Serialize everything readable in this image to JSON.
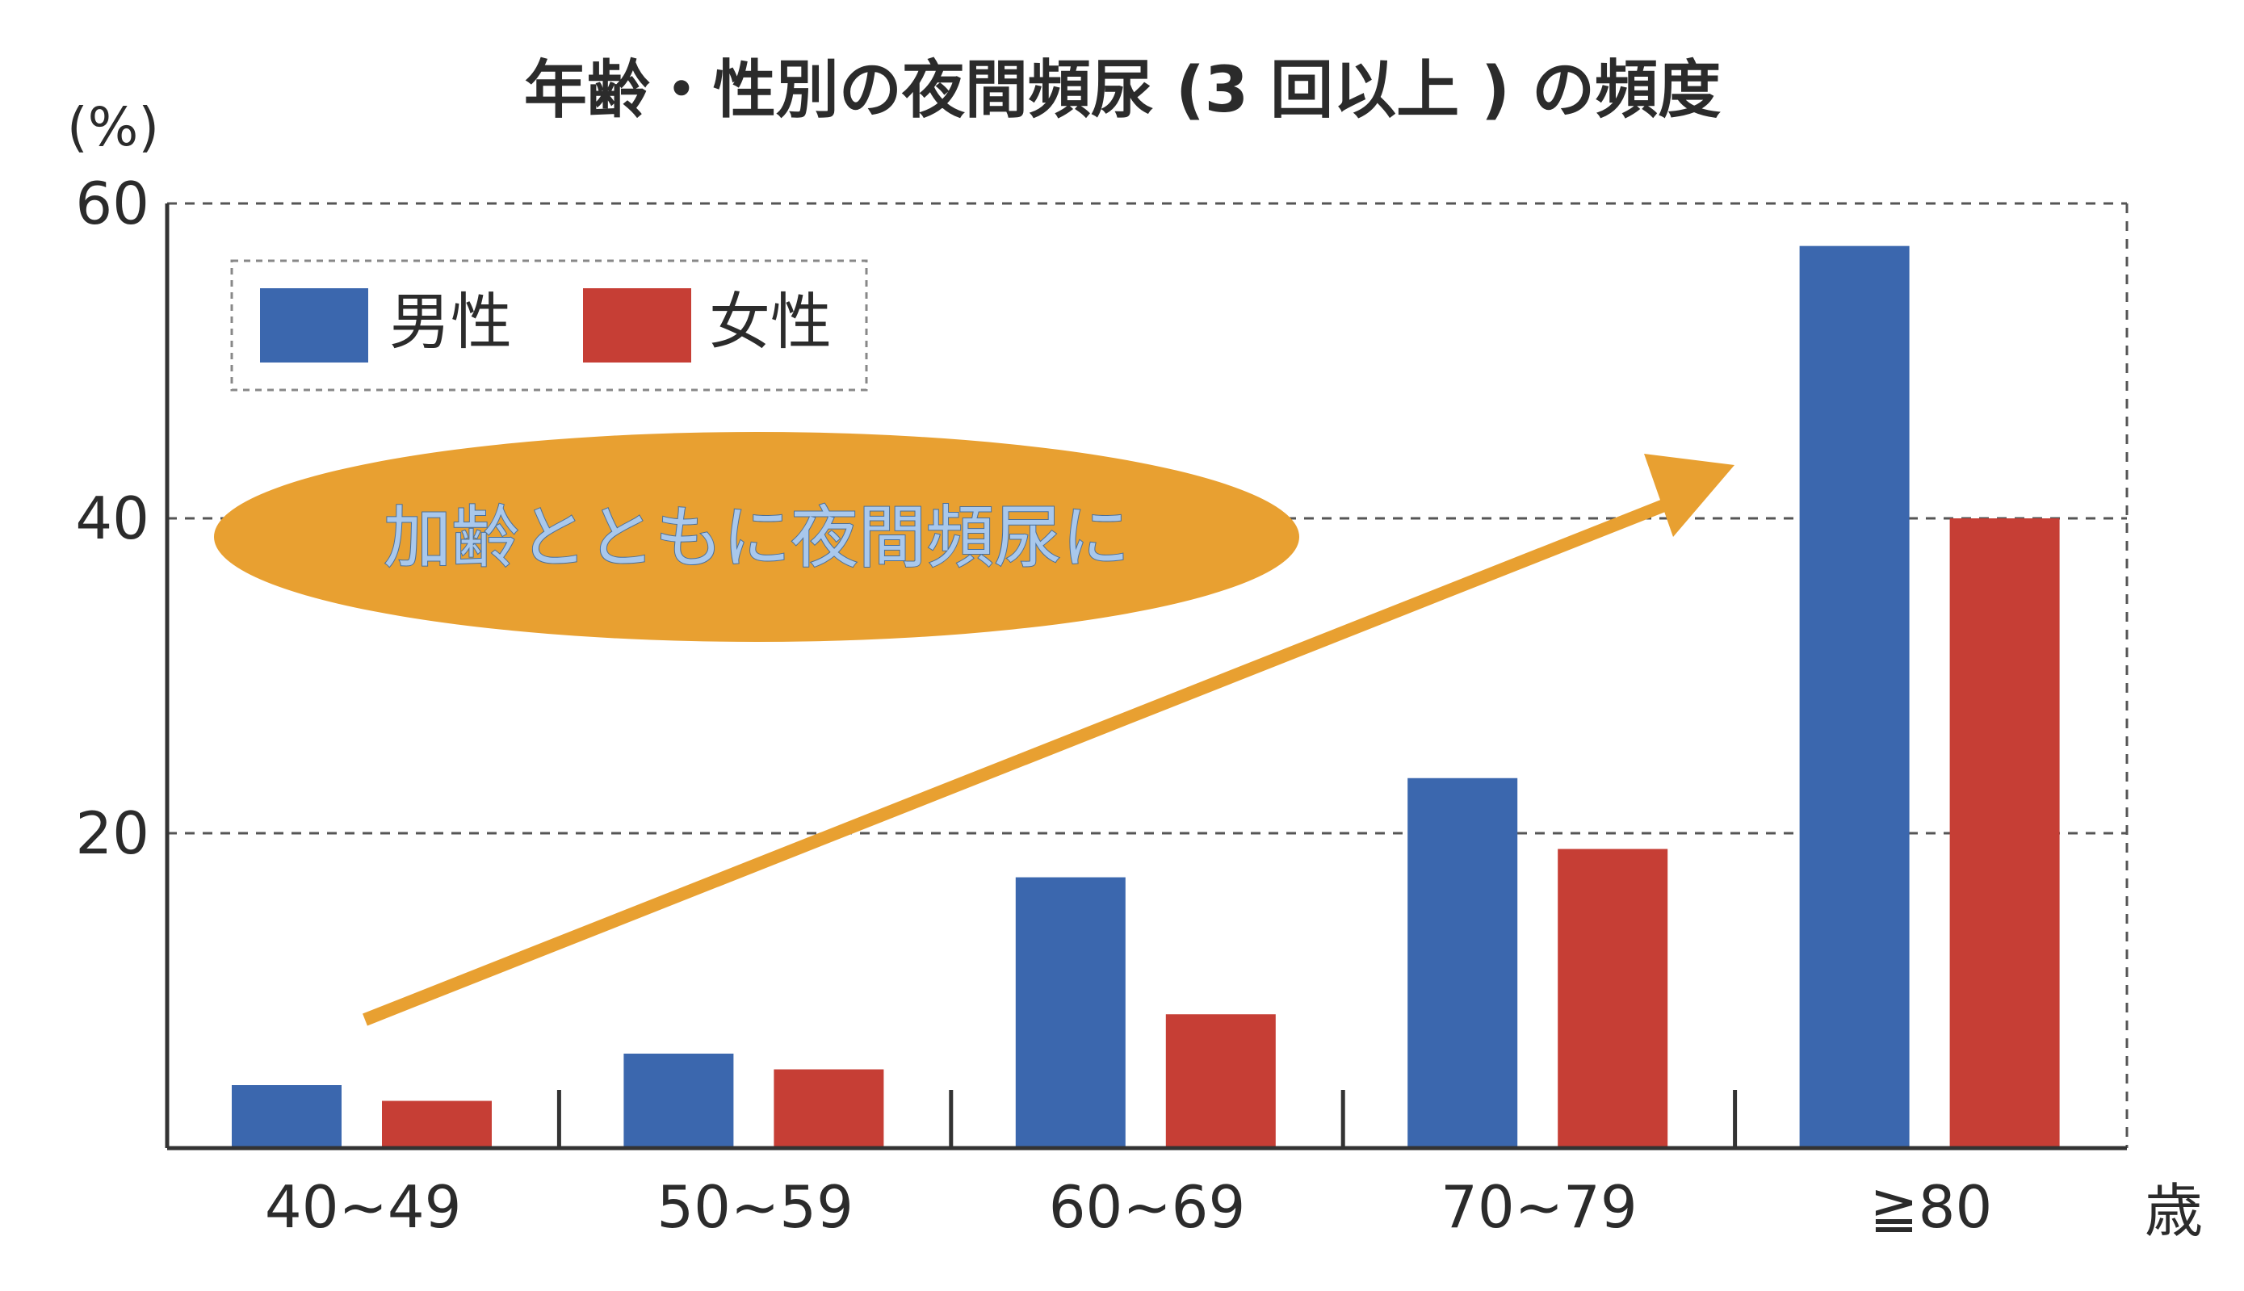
{
  "chart_data": {
    "type": "bar",
    "title": "年齢・性別の夜間頻尿 (3 回以上 ) の頻度",
    "ylabel": "(%)",
    "xlabel": "歳",
    "ylim": [
      0,
      60
    ],
    "yticks": [
      "20",
      "40",
      "60"
    ],
    "ytick_values": [
      20,
      40,
      60
    ],
    "grid": "dashed horizontal",
    "legend_position": "top-left",
    "categories": [
      "40~49",
      "50~59",
      "60~69",
      "70~79",
      "≧80"
    ],
    "series": [
      {
        "name": "男性",
        "values": [
          4,
          6,
          17.2,
          23.5,
          57.3
        ],
        "color": "#3b67ae"
      },
      {
        "name": "女性",
        "values": [
          3,
          5,
          8.5,
          19,
          40
        ],
        "color": "#c63e35"
      }
    ],
    "annotation": {
      "text": "加齢とともに夜間頻尿に",
      "bg_color": "#e8a031",
      "arrow_color": "#e8a031"
    }
  }
}
